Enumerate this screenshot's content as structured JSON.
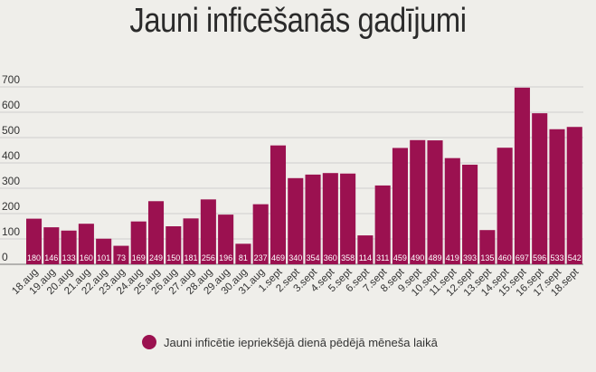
{
  "chart_data": {
    "type": "bar",
    "title": "Jauni inficēšanās gadījumi",
    "categories": [
      "18.aug",
      "19.aug",
      "20.aug",
      "21.aug",
      "22.aug",
      "23.aug",
      "24.aug",
      "25.aug",
      "26.aug",
      "27.aug",
      "28.aug",
      "29.aug",
      "30.aug",
      "31.aug",
      "1.sept",
      "2.sept",
      "3.sept",
      "4.sept",
      "5.sept",
      "6.sept",
      "7.sept",
      "8.sept",
      "9.sept",
      "10.sept",
      "11.sept",
      "12.sept",
      "13.sept",
      "14.sept",
      "15.sept",
      "16.sept",
      "17.sept",
      "18.sept"
    ],
    "values": [
      180,
      146,
      133,
      160,
      101,
      73,
      169,
      249,
      150,
      181,
      256,
      196,
      81,
      237,
      469,
      340,
      354,
      360,
      358,
      114,
      311,
      459,
      490,
      489,
      419,
      393,
      135,
      460,
      697,
      596,
      533,
      542
    ],
    "y_ticks": [
      "0",
      "100",
      "200",
      "300",
      "400",
      "500",
      "600",
      "700"
    ],
    "ylim": [
      0,
      700
    ],
    "grid": true,
    "bar_color": "#9b1150",
    "legend": {
      "placement": "bottom-center",
      "label": "Jauni inficētie iepriekšējā dienā pēdējā mēneša laikā"
    }
  }
}
